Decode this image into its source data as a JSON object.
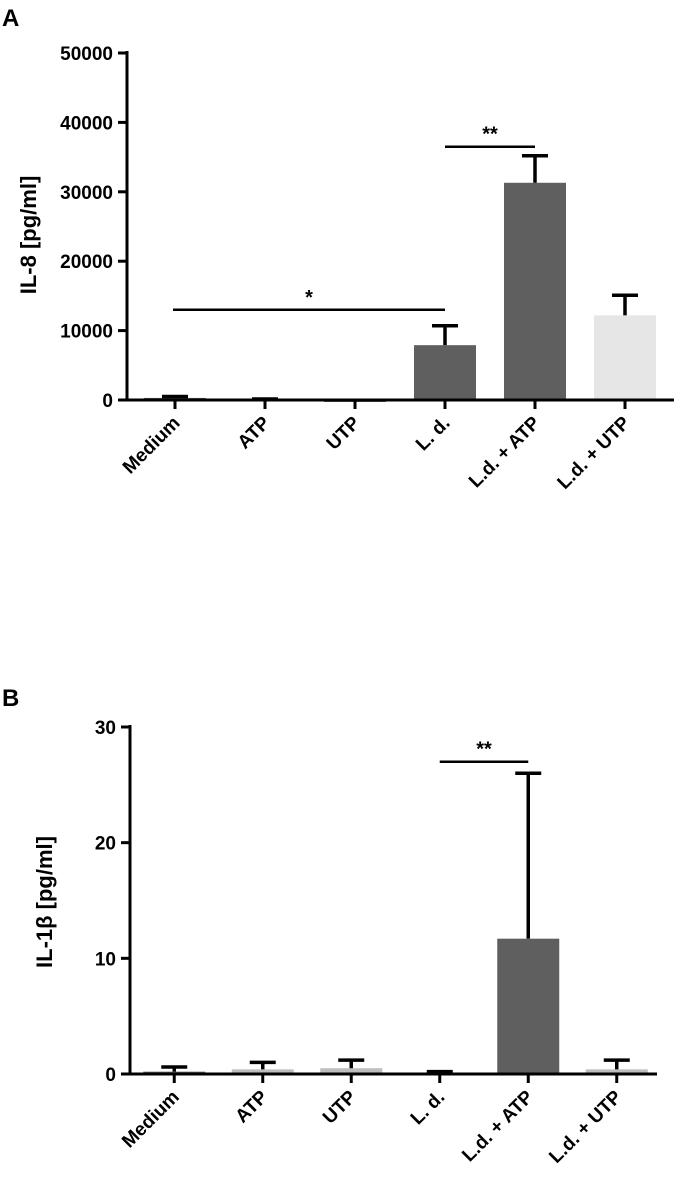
{
  "chart_data": [
    {
      "type": "bar",
      "panel": "A",
      "ylabel": "IL-8 [pg/ml]",
      "ylim": [
        0,
        50000
      ],
      "yticks": [
        0,
        10000,
        20000,
        30000,
        40000,
        50000
      ],
      "ytick_labels": [
        "0",
        "10000",
        "20000",
        "30000",
        "40000",
        "50000"
      ],
      "categories": [
        "Medium",
        "ATP",
        "UTP",
        "L. d.",
        "L.d. + ATP",
        "L.d. + UTP"
      ],
      "values": [
        300,
        100,
        0,
        7900,
        31300,
        12200
      ],
      "errors": [
        200,
        50,
        0,
        2800,
        3900,
        2900
      ],
      "bar_colors": [
        "#5f5f5f",
        "#5f5f5f",
        "#5f5f5f",
        "#5f5f5f",
        "#5f5f5f",
        "#e6e6e6"
      ],
      "significance": [
        {
          "from": 0,
          "to": 3,
          "label": "*",
          "y": 13000
        },
        {
          "from": 3,
          "to": 4,
          "label": "**",
          "y": 36500
        }
      ]
    },
    {
      "type": "bar",
      "panel": "B",
      "ylabel": "IL-1β [pg/ml]",
      "ylim": [
        0,
        30
      ],
      "yticks": [
        0,
        10,
        20,
        30
      ],
      "ytick_labels": [
        "0",
        "10",
        "20",
        "30"
      ],
      "categories": [
        "Medium",
        "ATP",
        "UTP",
        "L. d.",
        "L.d. + ATP",
        "L.d. + UTP"
      ],
      "values": [
        0.2,
        0.4,
        0.5,
        0.1,
        11.7,
        0.4
      ],
      "errors": [
        0.4,
        0.6,
        0.7,
        0.1,
        14.3,
        0.8
      ],
      "bar_colors": [
        "#5f5f5f",
        "#bdbdbd",
        "#bdbdbd",
        "#5f5f5f",
        "#5f5f5f",
        "#bdbdbd"
      ],
      "significance": [
        {
          "from": 3,
          "to": 4,
          "label": "**",
          "y": 27
        }
      ]
    }
  ]
}
